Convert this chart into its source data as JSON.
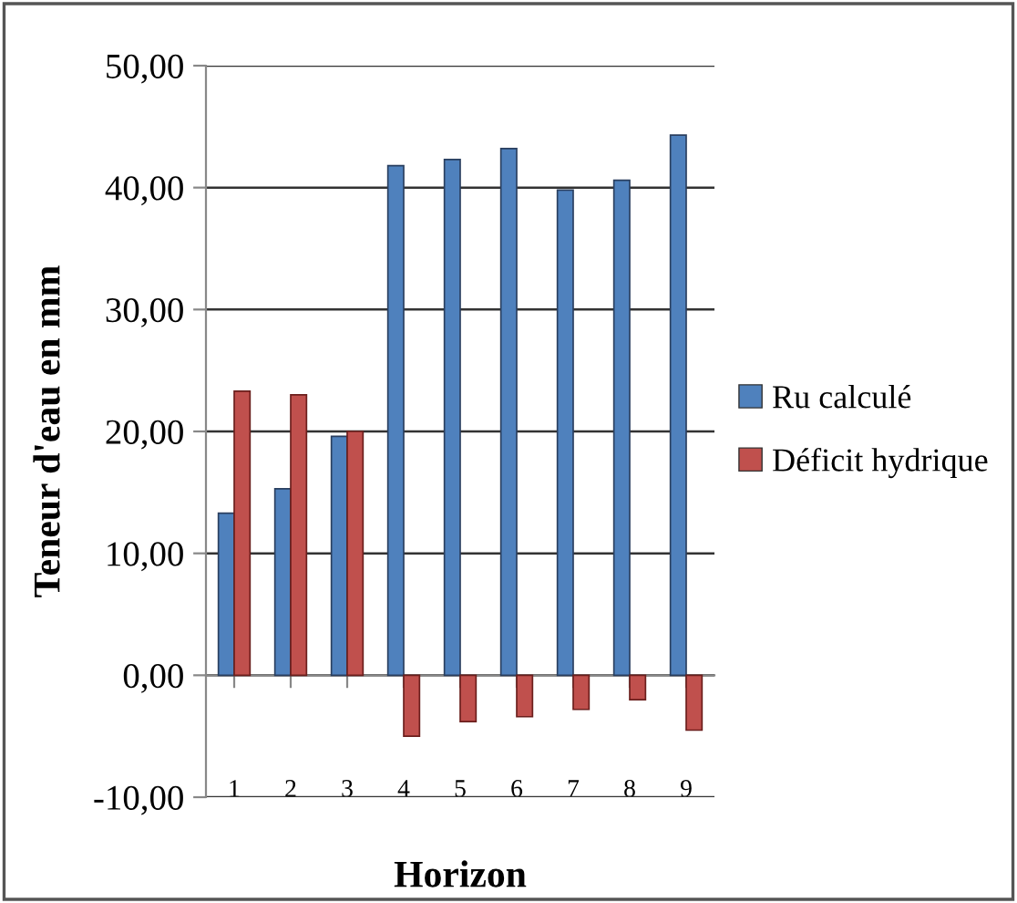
{
  "chart_data": {
    "type": "bar",
    "xlabel": "Horizon",
    "ylabel": "Teneur d'eau en mm",
    "categories": [
      "1",
      "2",
      "3",
      "4",
      "5",
      "6",
      "7",
      "8",
      "9"
    ],
    "series": [
      {
        "name": "Ru calculé",
        "color": "#4f81bd",
        "values": [
          13.3,
          15.3,
          19.6,
          41.8,
          42.3,
          43.2,
          39.8,
          40.6,
          44.3
        ]
      },
      {
        "name": "Déficit hydrique",
        "color": "#c0504d",
        "values": [
          23.3,
          23.0,
          20.0,
          -5.0,
          -3.8,
          -3.4,
          -2.8,
          -2.0,
          -4.5
        ]
      }
    ],
    "ylim": [
      -10,
      50
    ],
    "yticks": [
      {
        "value": -10,
        "label": "-10,00"
      },
      {
        "value": 0,
        "label": "0,00"
      },
      {
        "value": 10,
        "label": "10,00"
      },
      {
        "value": 20,
        "label": "20,00"
      },
      {
        "value": 30,
        "label": "30,00"
      },
      {
        "value": 40,
        "label": "40,00"
      },
      {
        "value": 50,
        "label": "50,00"
      }
    ],
    "grid": "y",
    "legend": "right"
  }
}
